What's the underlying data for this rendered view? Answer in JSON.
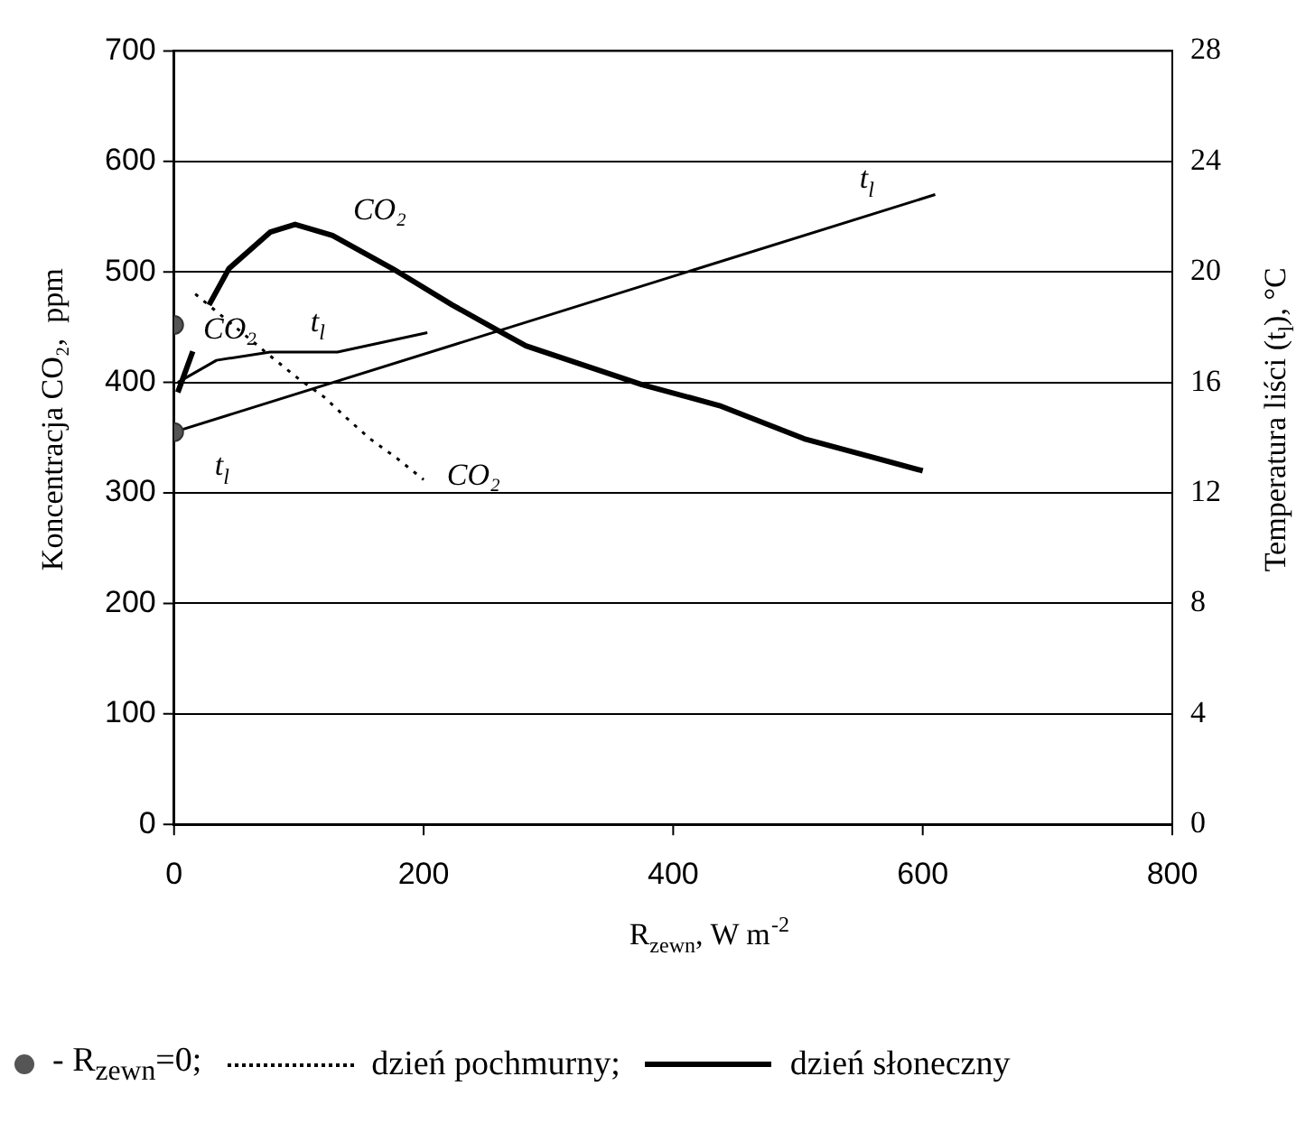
{
  "chart_data": {
    "type": "line",
    "xlabel": "R$_{zewn}$, W m$^{-2}$",
    "ylabel": "Koncentracja CO₂,  ppm",
    "y2label": "Temperatura liści (t$_{l}$), °C",
    "xlim": [
      0,
      800
    ],
    "xticks": [
      0,
      200,
      400,
      600,
      800
    ],
    "ylim": [
      0,
      700
    ],
    "yticks": [
      0,
      100,
      200,
      300,
      400,
      500,
      600,
      700
    ],
    "y2lim": [
      0,
      28
    ],
    "y2ticks": [
      0,
      4,
      8,
      12,
      16,
      20,
      24,
      28
    ],
    "grid": "y",
    "legend": "bottom",
    "series": [
      {
        "name": "- R$_{zewn}$=0;",
        "type": "scatter",
        "marker": "circle",
        "color": "#555555",
        "x": [
          0
        ],
        "values": [
          452
        ]
      },
      {
        "type": "scatter",
        "marker": "circle",
        "color": "#555555",
        "x": [
          0
        ],
        "values": [
          14.2
        ],
        "axis": "y2"
      },
      {
        "name": "dzień pochmurny;",
        "type": "line",
        "line_style": "dotted",
        "marker": "none",
        "color": "#000000",
        "x": [
          17,
          77,
          99,
          120,
          139,
          157,
          179,
          200
        ],
        "values": [
          480,
          424,
          404,
          387,
          367,
          349,
          331,
          312
        ]
      },
      {
        "name": "dzień słoneczny",
        "type": "line",
        "line_style": "solid",
        "marker": "none",
        "color": "#000000",
        "x": [
          3,
          15,
          20,
          28,
          44,
          77,
          97,
          127,
          175,
          223,
          258,
          282,
          375,
          437,
          505,
          600
        ],
        "values": [
          391,
          428,
          null,
          470,
          503,
          536,
          543,
          533,
          503,
          470,
          448,
          433,
          398,
          379,
          349,
          320
        ]
      },
      {
        "type": "line",
        "line_style": "solid",
        "marker": "none",
        "color": "#000000",
        "axis": "y2",
        "x": [
          3,
          34,
          77,
          131,
          203
        ],
        "values": [
          16.0,
          16.8,
          17.1,
          17.1,
          17.8
        ]
      },
      {
        "type": "line",
        "line_style": "solid",
        "marker": "none",
        "color": "#000000",
        "axis": "y2",
        "x": [
          0,
          610
        ],
        "values": [
          14.2,
          22.8
        ]
      }
    ],
    "annotations": [
      "CO₂",
      "t$_{l}$",
      "CO₂",
      "t$_{l}$",
      "t$_{l}$",
      "CO₂"
    ]
  }
}
